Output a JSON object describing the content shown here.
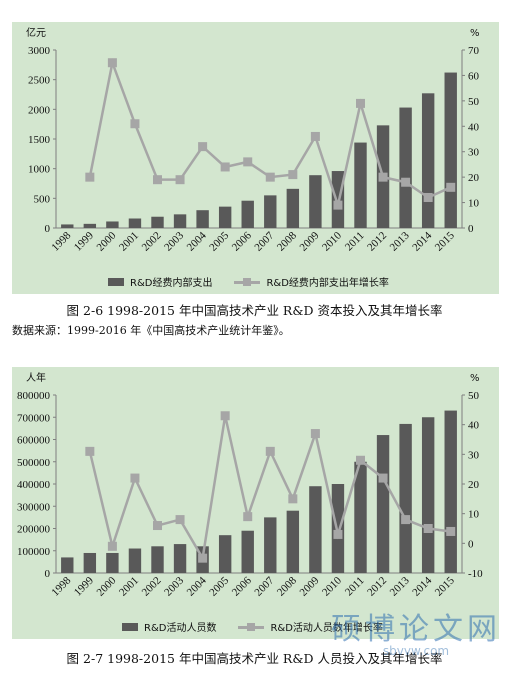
{
  "chart_data": [
    {
      "type": "bar",
      "categories": [
        "1998",
        "1999",
        "2000",
        "2001",
        "2002",
        "2003",
        "2004",
        "2005",
        "2006",
        "2007",
        "2008",
        "2009",
        "2010",
        "2011",
        "2012",
        "2013",
        "2014",
        "2015"
      ],
      "y_left_label": "亿元",
      "y_right_label": "%",
      "ylim_left": [
        0,
        3000
      ],
      "yticks_left": [
        "0",
        "500",
        "1000",
        "1500",
        "2000",
        "2500",
        "3000"
      ],
      "ylim_right": [
        0,
        70
      ],
      "yticks_right": [
        "0",
        "10",
        "20",
        "30",
        "40",
        "50",
        "60",
        "70"
      ],
      "series": [
        {
          "name": "R&D经费内部支出",
          "kind": "bar",
          "axis": "left",
          "values": [
            60,
            70,
            110,
            160,
            190,
            230,
            300,
            360,
            460,
            550,
            660,
            890,
            960,
            1440,
            1730,
            2030,
            2270,
            2620
          ]
        },
        {
          "name": "R&D经费内部支出年增长率",
          "kind": "line",
          "axis": "right",
          "values": [
            null,
            20,
            65,
            41,
            19,
            19,
            32,
            24,
            26,
            20,
            21,
            36,
            9,
            49,
            20,
            18,
            12,
            16
          ]
        }
      ],
      "colors": {
        "bar": "#595959",
        "line": "#a6a6a6",
        "background": "#d3e6cf"
      },
      "legend_position": "bottom",
      "caption": "图  2-6 1998-2015 年中国高技术产业 R&D 资本投入及其年增长率"
    },
    {
      "type": "bar",
      "categories": [
        "1998",
        "1999",
        "2000",
        "2001",
        "2002",
        "2003",
        "2004",
        "2005",
        "2006",
        "2007",
        "2008",
        "2009",
        "2010",
        "2011",
        "2012",
        "2013",
        "2014",
        "2015"
      ],
      "y_left_label": "人年",
      "y_right_label": "%",
      "ylim_left": [
        0,
        800000
      ],
      "yticks_left": [
        "0",
        "100000",
        "200000",
        "300000",
        "400000",
        "500000",
        "600000",
        "700000",
        "800000"
      ],
      "ylim_right": [
        -10,
        50
      ],
      "yticks_right": [
        "-10",
        "0",
        "10",
        "20",
        "30",
        "40",
        "50"
      ],
      "series": [
        {
          "name": "R&D活动人员数",
          "kind": "bar",
          "axis": "left",
          "values": [
            70000,
            90000,
            90000,
            110000,
            120000,
            130000,
            120000,
            170000,
            190000,
            250000,
            280000,
            390000,
            400000,
            500000,
            620000,
            670000,
            700000,
            730000
          ]
        },
        {
          "name": "R&D活动人员数年增长率",
          "kind": "line",
          "axis": "right",
          "values": [
            null,
            31,
            -1,
            22,
            6,
            8,
            -5,
            43,
            9,
            31,
            15,
            37,
            3,
            28,
            22,
            8,
            5,
            4
          ]
        }
      ],
      "colors": {
        "bar": "#595959",
        "line": "#a6a6a6",
        "background": "#d3e6cf"
      },
      "legend_position": "bottom",
      "caption": "图  2-7 1998-2015 年中国高技术产业 R&D 人员投入及其年增长率"
    }
  ],
  "source_note": "数据来源：1999-2016 年《中国高技术产业统计年鉴》。",
  "watermark": {
    "title": "硕博论文网",
    "subtitle": "sbvvw.com"
  }
}
